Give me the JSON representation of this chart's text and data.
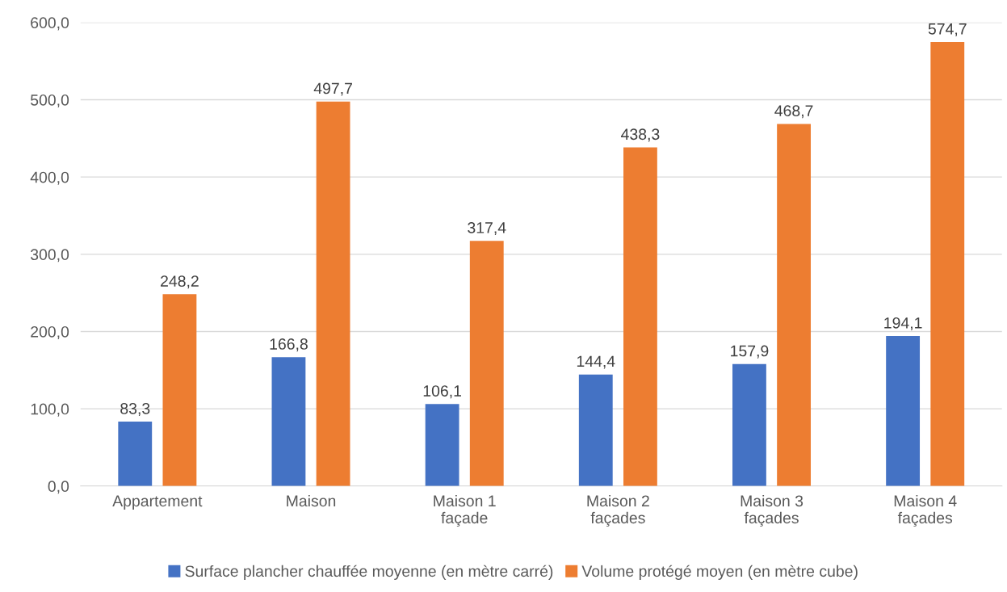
{
  "chart_data": {
    "type": "bar",
    "categories": [
      "Appartement",
      "Maison",
      "Maison 1\nfaçade",
      "Maison 2\nfaçades",
      "Maison 3\nfaçades",
      "Maison 4\nfaçades"
    ],
    "series": [
      {
        "name": "Surface plancher chauffée moyenne (en mètre carré)",
        "color": "#4472c4",
        "values": [
          83.3,
          166.8,
          106.1,
          144.4,
          157.9,
          194.1
        ],
        "value_labels": [
          "83,3",
          "166,8",
          "106,1",
          "144,4",
          "157,9",
          "194,1"
        ]
      },
      {
        "name": "Volume protégé moyen (en mètre cube)",
        "color": "#ed7d31",
        "values": [
          248.2,
          497.7,
          317.4,
          438.3,
          468.7,
          574.7
        ],
        "value_labels": [
          "248,2",
          "497,7",
          "317,4",
          "438,3",
          "468,7",
          "574,7"
        ]
      }
    ],
    "ylim": [
      0,
      600
    ],
    "yticks": [
      {
        "value": 0,
        "label": "0,0"
      },
      {
        "value": 100,
        "label": "100,0"
      },
      {
        "value": 200,
        "label": "200,0"
      },
      {
        "value": 300,
        "label": "300,0"
      },
      {
        "value": 400,
        "label": "400,0"
      },
      {
        "value": 500,
        "label": "500,0"
      },
      {
        "value": 600,
        "label": "600,0"
      }
    ],
    "grid": "y",
    "legend": "bottom"
  }
}
